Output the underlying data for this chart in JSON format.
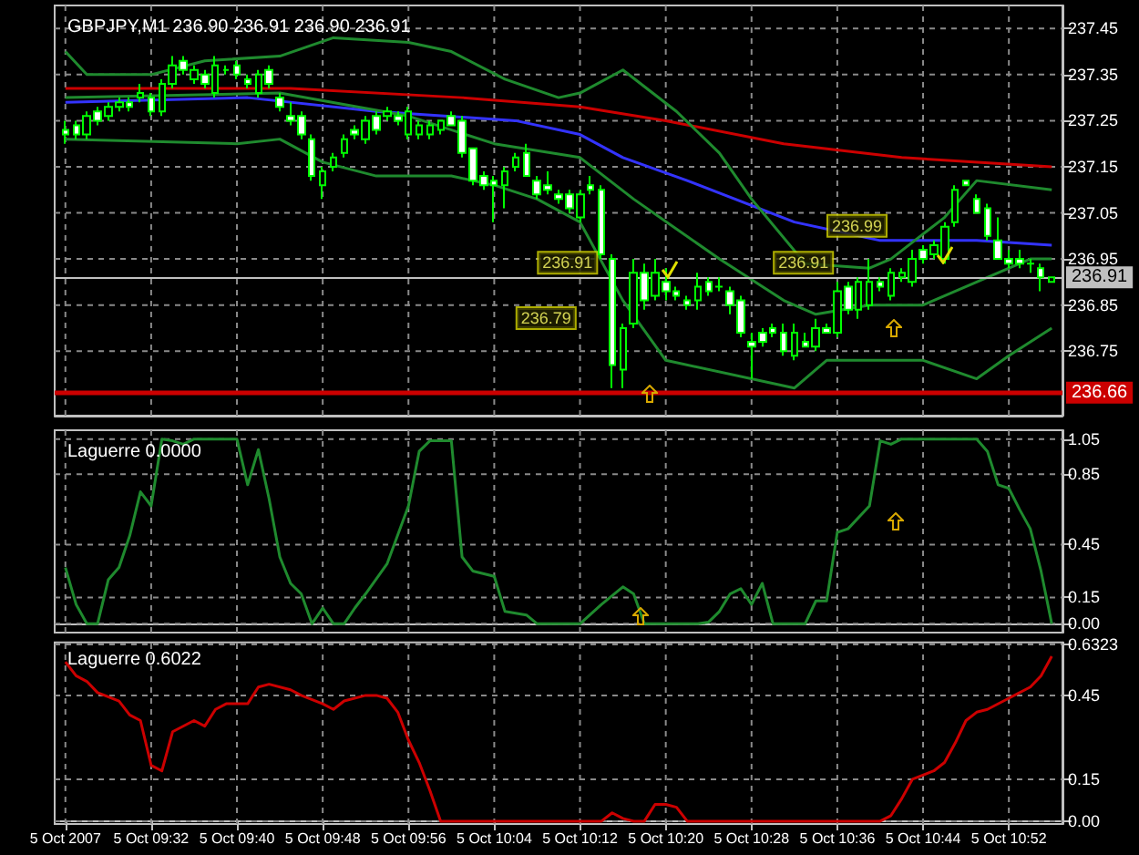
{
  "chart_data": [
    {
      "type": "candlestick",
      "title": "GBPJPY,M1 236.90 236.91 236.90 236.91",
      "xlim": [
        "2007-10-05T09:23",
        "2007-10-05T10:57"
      ],
      "xticks": [
        "2007-10-05T09:24",
        "2007-10-05T09:32",
        "2007-10-05T09:40",
        "2007-10-05T09:48",
        "2007-10-05T09:56",
        "2007-10-05T10:04",
        "2007-10-05T10:12",
        "2007-10-05T10:20",
        "2007-10-05T10:28",
        "2007-10-05T10:36",
        "2007-10-05T10:44",
        "2007-10-05T10:52"
      ],
      "ylim": [
        236.61,
        237.5
      ],
      "yticks": [
        236.75,
        236.85,
        236.95,
        237.05,
        237.15,
        237.25,
        237.35,
        237.45
      ],
      "tick_labels": "y",
      "grid": true,
      "marker": "none",
      "series": [
        {
          "type": "line",
          "color": "#cc0000",
          "x": [
            "2007-10-05T09:24",
            "2007-10-05T09:45",
            "2007-10-05T10:01",
            "2007-10-05T10:12",
            "2007-10-05T10:20",
            "2007-10-05T10:31",
            "2007-10-05T10:42",
            "2007-10-05T10:56"
          ],
          "values": [
            237.32,
            237.32,
            237.3,
            237.28,
            237.25,
            237.2,
            237.17,
            237.15
          ]
        },
        {
          "type": "line",
          "color": "#3333ff",
          "x": [
            "2007-10-05T09:24",
            "2007-10-05T09:41",
            "2007-10-05T09:53",
            "2007-10-05T10:06",
            "2007-10-05T10:12",
            "2007-10-05T10:16",
            "2007-10-05T10:22",
            "2007-10-05T10:32",
            "2007-10-05T10:40",
            "2007-10-05T10:49",
            "2007-10-05T10:56"
          ],
          "values": [
            237.29,
            237.3,
            237.27,
            237.25,
            237.22,
            237.17,
            237.12,
            237.03,
            236.99,
            236.99,
            236.98
          ]
        },
        {
          "type": "line",
          "color": "#1f8a2e",
          "x": [
            "2007-10-05T09:24",
            "2007-10-05T09:26",
            "2007-10-05T09:32",
            "2007-10-05T09:37",
            "2007-10-05T09:44",
            "2007-10-05T09:49",
            "2007-10-05T09:56",
            "2007-10-05T10:00",
            "2007-10-05T10:05",
            "2007-10-05T10:10",
            "2007-10-05T10:12",
            "2007-10-05T10:16",
            "2007-10-05T10:21",
            "2007-10-05T10:25",
            "2007-10-05T10:28",
            "2007-10-05T10:33",
            "2007-10-05T10:39",
            "2007-10-05T10:41",
            "2007-10-05T10:46",
            "2007-10-05T10:49",
            "2007-10-05T10:56"
          ],
          "values": [
            237.4,
            237.35,
            237.35,
            237.38,
            237.39,
            237.43,
            237.42,
            237.4,
            237.34,
            237.3,
            237.31,
            237.36,
            237.27,
            237.18,
            237.08,
            236.94,
            236.93,
            236.95,
            237.04,
            237.12,
            237.1
          ]
        },
        {
          "type": "line",
          "color": "#1f8a2e",
          "x": [
            "2007-10-05T09:24",
            "2007-10-05T09:44",
            "2007-10-05T09:56",
            "2007-10-05T10:04",
            "2007-10-05T10:12",
            "2007-10-05T10:17",
            "2007-10-05T10:25",
            "2007-10-05T10:31",
            "2007-10-05T10:34",
            "2007-10-05T10:39",
            "2007-10-05T10:44",
            "2007-10-05T10:49",
            "2007-10-05T10:54",
            "2007-10-05T10:56"
          ],
          "values": [
            237.3,
            237.31,
            237.26,
            237.2,
            237.17,
            237.08,
            236.95,
            236.86,
            236.83,
            236.85,
            236.85,
            236.9,
            236.95,
            236.95
          ]
        },
        {
          "type": "line",
          "color": "#1f8a2e",
          "x": [
            "2007-10-05T09:24",
            "2007-10-05T09:40",
            "2007-10-05T09:44",
            "2007-10-05T09:48",
            "2007-10-05T09:53",
            "2007-10-05T10:00",
            "2007-10-05T10:04",
            "2007-10-05T10:08",
            "2007-10-05T10:12",
            "2007-10-05T10:16",
            "2007-10-05T10:20",
            "2007-10-05T10:32",
            "2007-10-05T10:35",
            "2007-10-05T10:40",
            "2007-10-05T10:44",
            "2007-10-05T10:49",
            "2007-10-05T10:52",
            "2007-10-05T10:56"
          ],
          "values": [
            237.21,
            237.2,
            237.21,
            237.16,
            237.13,
            237.13,
            237.11,
            237.08,
            237.03,
            236.86,
            236.73,
            236.67,
            236.73,
            236.73,
            236.73,
            236.69,
            236.74,
            236.8
          ]
        },
        {
          "color": "#00ff00",
          "x": [
            "2007-10-05T09:24",
            "2007-10-05T09:25",
            "2007-10-05T09:26",
            "2007-10-05T09:27",
            "2007-10-05T09:28",
            "2007-10-05T09:29",
            "2007-10-05T09:30",
            "2007-10-05T09:31",
            "2007-10-05T09:32",
            "2007-10-05T09:33",
            "2007-10-05T09:34",
            "2007-10-05T09:35",
            "2007-10-05T09:36",
            "2007-10-05T09:37",
            "2007-10-05T09:38",
            "2007-10-05T09:39",
            "2007-10-05T09:40",
            "2007-10-05T09:41",
            "2007-10-05T09:42",
            "2007-10-05T09:43",
            "2007-10-05T09:44",
            "2007-10-05T09:45",
            "2007-10-05T09:46",
            "2007-10-05T09:47",
            "2007-10-05T09:48",
            "2007-10-05T09:49",
            "2007-10-05T09:50",
            "2007-10-05T09:51",
            "2007-10-05T09:52",
            "2007-10-05T09:53",
            "2007-10-05T09:54",
            "2007-10-05T09:55",
            "2007-10-05T09:56",
            "2007-10-05T09:57",
            "2007-10-05T09:58",
            "2007-10-05T09:59",
            "2007-10-05T10:00",
            "2007-10-05T10:01",
            "2007-10-05T10:02",
            "2007-10-05T10:03",
            "2007-10-05T10:04",
            "2007-10-05T10:05",
            "2007-10-05T10:06",
            "2007-10-05T10:07",
            "2007-10-05T10:08",
            "2007-10-05T10:09",
            "2007-10-05T10:10",
            "2007-10-05T10:11",
            "2007-10-05T10:12",
            "2007-10-05T10:13",
            "2007-10-05T10:14",
            "2007-10-05T10:15",
            "2007-10-05T10:16",
            "2007-10-05T10:17",
            "2007-10-05T10:18",
            "2007-10-05T10:19",
            "2007-10-05T10:20",
            "2007-10-05T10:21",
            "2007-10-05T10:22",
            "2007-10-05T10:23",
            "2007-10-05T10:24",
            "2007-10-05T10:25",
            "2007-10-05T10:26",
            "2007-10-05T10:27",
            "2007-10-05T10:28",
            "2007-10-05T10:29",
            "2007-10-05T10:30",
            "2007-10-05T10:31",
            "2007-10-05T10:32",
            "2007-10-05T10:33",
            "2007-10-05T10:34",
            "2007-10-05T10:35",
            "2007-10-05T10:36",
            "2007-10-05T10:37",
            "2007-10-05T10:38",
            "2007-10-05T10:39",
            "2007-10-05T10:40",
            "2007-10-05T10:41",
            "2007-10-05T10:42",
            "2007-10-05T10:43",
            "2007-10-05T10:44",
            "2007-10-05T10:45",
            "2007-10-05T10:46",
            "2007-10-05T10:47",
            "2007-10-05T10:48",
            "2007-10-05T10:49",
            "2007-10-05T10:50",
            "2007-10-05T10:51",
            "2007-10-05T10:52",
            "2007-10-05T10:53",
            "2007-10-05T10:54",
            "2007-10-05T10:55",
            "2007-10-05T10:56"
          ],
          "ohlc": [
            [
              237.23,
              237.25,
              237.2,
              237.22
            ],
            [
              237.24,
              237.25,
              237.21,
              237.22
            ],
            [
              237.22,
              237.27,
              237.21,
              237.26
            ],
            [
              237.27,
              237.28,
              237.24,
              237.25
            ],
            [
              237.26,
              237.29,
              237.25,
              237.28
            ],
            [
              237.28,
              237.3,
              237.27,
              237.29
            ],
            [
              237.29,
              237.3,
              237.27,
              237.28
            ],
            [
              237.3,
              237.33,
              237.29,
              237.31
            ],
            [
              237.3,
              237.31,
              237.26,
              237.27
            ],
            [
              237.27,
              237.34,
              237.26,
              237.33
            ],
            [
              237.33,
              237.39,
              237.32,
              237.37
            ],
            [
              237.38,
              237.39,
              237.35,
              237.36
            ],
            [
              237.34,
              237.37,
              237.33,
              237.36
            ],
            [
              237.35,
              237.36,
              237.32,
              237.33
            ],
            [
              237.31,
              237.39,
              237.3,
              237.37
            ],
            [
              237.36,
              237.37,
              237.35,
              237.36
            ],
            [
              237.37,
              237.38,
              237.34,
              237.35
            ],
            [
              237.34,
              237.35,
              237.32,
              237.33
            ],
            [
              237.31,
              237.36,
              237.3,
              237.35
            ],
            [
              237.36,
              237.37,
              237.32,
              237.33
            ],
            [
              237.3,
              237.31,
              237.27,
              237.28
            ],
            [
              237.26,
              237.29,
              237.24,
              237.25
            ],
            [
              237.26,
              237.27,
              237.21,
              237.22
            ],
            [
              237.21,
              237.22,
              237.12,
              237.13
            ],
            [
              237.11,
              237.15,
              237.08,
              237.14
            ],
            [
              237.15,
              237.18,
              237.14,
              237.17
            ],
            [
              237.18,
              237.22,
              237.17,
              237.21
            ],
            [
              237.23,
              237.24,
              237.21,
              237.22
            ],
            [
              237.21,
              237.26,
              237.2,
              237.25
            ],
            [
              237.26,
              237.27,
              237.22,
              237.23
            ],
            [
              237.26,
              237.28,
              237.25,
              237.27
            ],
            [
              237.26,
              237.27,
              237.24,
              237.25
            ],
            [
              237.22,
              237.28,
              237.21,
              237.27
            ],
            [
              237.22,
              237.25,
              237.21,
              237.24
            ],
            [
              237.22,
              237.25,
              237.21,
              237.24
            ],
            [
              237.23,
              237.25,
              237.22,
              237.25
            ],
            [
              237.26,
              237.27,
              237.24,
              237.24
            ],
            [
              237.25,
              237.26,
              237.17,
              237.18
            ],
            [
              237.19,
              237.19,
              237.11,
              237.12
            ],
            [
              237.13,
              237.14,
              237.1,
              237.11
            ],
            [
              237.12,
              237.13,
              237.03,
              237.11
            ],
            [
              237.11,
              237.15,
              237.06,
              237.14
            ],
            [
              237.15,
              237.18,
              237.14,
              237.17
            ],
            [
              237.18,
              237.2,
              237.13,
              237.13
            ],
            [
              237.12,
              237.13,
              237.08,
              237.09
            ],
            [
              237.11,
              237.14,
              237.09,
              237.1
            ],
            [
              237.09,
              237.1,
              237.07,
              237.08
            ],
            [
              237.09,
              237.1,
              237.05,
              237.06
            ],
            [
              237.04,
              237.1,
              237.03,
              237.09
            ],
            [
              237.11,
              237.13,
              237.09,
              237.1
            ],
            [
              237.1,
              237.11,
              236.95,
              236.96
            ],
            [
              236.95,
              236.96,
              236.67,
              236.72
            ],
            [
              236.71,
              236.81,
              236.67,
              236.8
            ],
            [
              236.81,
              236.95,
              236.8,
              236.92
            ],
            [
              236.92,
              236.94,
              236.84,
              236.86
            ],
            [
              236.87,
              236.95,
              236.86,
              236.92
            ],
            [
              236.9,
              236.93,
              236.86,
              236.88
            ],
            [
              236.88,
              236.89,
              236.86,
              236.87
            ],
            [
              236.86,
              236.87,
              236.84,
              236.85
            ],
            [
              236.86,
              236.92,
              236.84,
              236.89
            ],
            [
              236.9,
              236.91,
              236.87,
              236.88
            ],
            [
              236.89,
              236.91,
              236.88,
              236.89
            ],
            [
              236.88,
              236.89,
              236.83,
              236.85
            ],
            [
              236.86,
              236.87,
              236.78,
              236.79
            ],
            [
              236.77,
              236.79,
              236.69,
              236.76
            ],
            [
              236.79,
              236.8,
              236.76,
              236.77
            ],
            [
              236.8,
              236.81,
              236.78,
              236.79
            ],
            [
              236.79,
              236.81,
              236.74,
              236.75
            ],
            [
              236.74,
              236.81,
              236.73,
              236.79
            ],
            [
              236.77,
              236.79,
              236.76,
              236.76
            ],
            [
              236.76,
              236.82,
              236.75,
              236.8
            ],
            [
              236.8,
              236.81,
              236.79,
              236.79
            ],
            [
              236.79,
              236.9,
              236.78,
              236.88
            ],
            [
              236.89,
              236.9,
              236.83,
              236.84
            ],
            [
              236.84,
              236.91,
              236.82,
              236.9
            ],
            [
              236.85,
              236.95,
              236.84,
              236.9
            ],
            [
              236.9,
              236.91,
              236.88,
              236.89
            ],
            [
              236.87,
              236.93,
              236.86,
              236.92
            ],
            [
              236.91,
              236.93,
              236.9,
              236.92
            ],
            [
              236.9,
              236.97,
              236.89,
              236.95
            ],
            [
              236.97,
              236.98,
              236.94,
              236.95
            ],
            [
              236.96,
              236.99,
              236.95,
              236.98
            ],
            [
              236.95,
              237.03,
              236.94,
              237.02
            ],
            [
              237.03,
              237.11,
              237.02,
              237.1
            ],
            [
              237.12,
              237.12,
              237.11,
              237.11
            ],
            [
              237.08,
              237.09,
              237.05,
              237.05
            ],
            [
              237.06,
              237.07,
              236.99,
              237.0
            ],
            [
              236.99,
              237.04,
              236.95,
              236.95
            ],
            [
              236.95,
              236.97,
              236.93,
              236.94
            ],
            [
              236.95,
              236.97,
              236.93,
              236.94
            ],
            [
              236.94,
              236.95,
              236.92,
              236.94
            ],
            [
              236.93,
              236.94,
              236.88,
              236.91
            ],
            [
              236.9,
              236.91,
              236.9,
              236.91
            ]
          ]
        }
      ],
      "ref_lines": [
        {
          "axis": "y",
          "value": 236.91,
          "label": "236.91",
          "color": "#c0c0c0"
        },
        {
          "axis": "y",
          "value": 236.66,
          "label": "236.66",
          "color": "#cc0000"
        }
      ],
      "annotations": [
        {
          "text": "236.79",
          "x": "2007-10-05T10:15",
          "y": 236.79
        },
        {
          "text": "236.91",
          "x": "2007-10-05T10:17",
          "y": 236.91
        },
        {
          "text": "236.91",
          "x": "2007-10-05T10:39",
          "y": 236.91
        },
        {
          "text": "236.99",
          "x": "2007-10-05T10:44",
          "y": 236.99
        }
      ]
    },
    {
      "type": "line",
      "title": "Laguerre 0.0000",
      "xlim": [
        "2007-10-05T09:23",
        "2007-10-05T10:57"
      ],
      "xticks": [
        "2007-10-05T09:24",
        "2007-10-05T09:32",
        "2007-10-05T09:40",
        "2007-10-05T09:48",
        "2007-10-05T09:56",
        "2007-10-05T10:04",
        "2007-10-05T10:12",
        "2007-10-05T10:20",
        "2007-10-05T10:28",
        "2007-10-05T10:36",
        "2007-10-05T10:44",
        "2007-10-05T10:52"
      ],
      "ylim": [
        -0.05,
        1.1
      ],
      "yticks": [
        {
          "value": 0,
          "label": "0.00"
        },
        0.15,
        0.45,
        0.85,
        1.05
      ],
      "tick_labels": "y",
      "grid": true,
      "marker": "none",
      "series": [
        {
          "color": "#1f8a2e",
          "x": [
            "2007-10-05T09:24",
            "2007-10-05T09:25",
            "2007-10-05T09:26",
            "2007-10-05T09:27",
            "2007-10-05T09:28",
            "2007-10-05T09:29",
            "2007-10-05T09:30",
            "2007-10-05T09:31",
            "2007-10-05T09:32",
            "2007-10-05T09:33",
            "2007-10-05T09:34",
            "2007-10-05T09:35",
            "2007-10-05T09:36",
            "2007-10-05T09:40",
            "2007-10-05T09:41",
            "2007-10-05T09:42",
            "2007-10-05T09:43",
            "2007-10-05T09:44",
            "2007-10-05T09:45",
            "2007-10-05T09:46",
            "2007-10-05T09:47",
            "2007-10-05T09:48",
            "2007-10-05T09:49",
            "2007-10-05T09:50",
            "2007-10-05T09:51",
            "2007-10-05T09:52",
            "2007-10-05T09:54",
            "2007-10-05T09:56",
            "2007-10-05T09:57",
            "2007-10-05T09:58",
            "2007-10-05T10:00",
            "2007-10-05T10:01",
            "2007-10-05T10:02",
            "2007-10-05T10:04",
            "2007-10-05T10:05",
            "2007-10-05T10:07",
            "2007-10-05T10:08",
            "2007-10-05T10:12",
            "2007-10-05T10:14",
            "2007-10-05T10:16",
            "2007-10-05T10:17",
            "2007-10-05T10:18",
            "2007-10-05T10:23",
            "2007-10-05T10:24",
            "2007-10-05T10:25",
            "2007-10-05T10:26",
            "2007-10-05T10:27",
            "2007-10-05T10:28",
            "2007-10-05T10:29",
            "2007-10-05T10:30",
            "2007-10-05T10:33",
            "2007-10-05T10:34",
            "2007-10-05T10:35",
            "2007-10-05T10:36",
            "2007-10-05T10:37",
            "2007-10-05T10:39",
            "2007-10-05T10:40",
            "2007-10-05T10:41",
            "2007-10-05T10:42",
            "2007-10-05T10:49",
            "2007-10-05T10:50",
            "2007-10-05T10:51",
            "2007-10-05T10:52",
            "2007-10-05T10:53",
            "2007-10-05T10:54",
            "2007-10-05T10:55",
            "2007-10-05T10:56"
          ],
          "values": [
            0.32,
            0.11,
            0,
            0,
            0.25,
            0.32,
            0.5,
            0.75,
            0.67,
            1.05,
            1.04,
            1.02,
            1.05,
            1.05,
            0.79,
            0.99,
            0.71,
            0.38,
            0.23,
            0.17,
            0,
            0.09,
            0,
            0,
            0.09,
            0.17,
            0.34,
            0.67,
            0.98,
            1.04,
            1.04,
            0.38,
            0.3,
            0.27,
            0.07,
            0.05,
            0,
            0,
            0.11,
            0.21,
            0.17,
            0,
            0,
            0.01,
            0.07,
            0.17,
            0.2,
            0.11,
            0.23,
            0,
            0,
            0.13,
            0.13,
            0.52,
            0.54,
            0.67,
            1.04,
            1.02,
            1.05,
            1.05,
            0.98,
            0.79,
            0.77,
            0.65,
            0.54,
            0.3,
            0
          ]
        }
      ]
    },
    {
      "type": "line",
      "title": "Laguerre 0.6022",
      "xlim": [
        "2007-10-05T09:23",
        "2007-10-05T10:57"
      ],
      "xticks": [
        {
          "value": "2007-10-05T09:24",
          "label": "5 Oct 2007"
        },
        {
          "value": "2007-10-05T09:32",
          "label": "5 Oct 09:32"
        },
        {
          "value": "2007-10-05T09:40",
          "label": "5 Oct 09:40"
        },
        {
          "value": "2007-10-05T09:48",
          "label": "5 Oct 09:48"
        },
        {
          "value": "2007-10-05T09:56",
          "label": "5 Oct 09:56"
        },
        {
          "value": "2007-10-05T10:04",
          "label": "5 Oct 10:04"
        },
        {
          "value": "2007-10-05T10:12",
          "label": "5 Oct 10:12"
        },
        {
          "value": "2007-10-05T10:20",
          "label": "5 Oct 10:20"
        },
        {
          "value": "2007-10-05T10:28",
          "label": "5 Oct 10:28"
        },
        {
          "value": "2007-10-05T10:36",
          "label": "5 Oct 10:36"
        },
        {
          "value": "2007-10-05T10:44",
          "label": "5 Oct 10:44"
        },
        {
          "value": "2007-10-05T10:52",
          "label": "5 Oct 10:52"
        }
      ],
      "ylim": [
        -0.01,
        0.64
      ],
      "yticks": [
        {
          "value": 0,
          "label": "0.00"
        },
        0.15,
        0.45,
        0.6323
      ],
      "grid": true,
      "marker": "none",
      "series": [
        {
          "color": "#cc0000",
          "x": [
            "2007-10-05T09:24",
            "2007-10-05T09:25",
            "2007-10-05T09:26",
            "2007-10-05T09:27",
            "2007-10-05T09:29",
            "2007-10-05T09:30",
            "2007-10-05T09:31",
            "2007-10-05T09:32",
            "2007-10-05T09:33",
            "2007-10-05T09:34",
            "2007-10-05T09:36",
            "2007-10-05T09:37",
            "2007-10-05T09:38",
            "2007-10-05T09:39",
            "2007-10-05T09:41",
            "2007-10-05T09:42",
            "2007-10-05T09:43",
            "2007-10-05T09:45",
            "2007-10-05T09:46",
            "2007-10-05T09:48",
            "2007-10-05T09:49",
            "2007-10-05T09:50",
            "2007-10-05T09:52",
            "2007-10-05T09:53",
            "2007-10-05T09:54",
            "2007-10-05T09:55",
            "2007-10-05T09:56",
            "2007-10-05T09:57",
            "2007-10-05T09:58",
            "2007-10-05T09:59",
            "2007-10-05T10:14",
            "2007-10-05T10:15",
            "2007-10-05T10:16",
            "2007-10-05T10:17",
            "2007-10-05T10:18",
            "2007-10-05T10:19",
            "2007-10-05T10:20",
            "2007-10-05T10:21",
            "2007-10-05T10:22",
            "2007-10-05T10:40",
            "2007-10-05T10:41",
            "2007-10-05T10:42",
            "2007-10-05T10:43",
            "2007-10-05T10:45",
            "2007-10-05T10:46",
            "2007-10-05T10:47",
            "2007-10-05T10:48",
            "2007-10-05T10:49",
            "2007-10-05T10:50",
            "2007-10-05T10:52",
            "2007-10-05T10:54",
            "2007-10-05T10:55",
            "2007-10-05T10:56"
          ],
          "values": [
            0.57,
            0.52,
            0.5,
            0.46,
            0.43,
            0.38,
            0.36,
            0.2,
            0.18,
            0.32,
            0.36,
            0.34,
            0.4,
            0.42,
            0.42,
            0.48,
            0.49,
            0.47,
            0.45,
            0.42,
            0.4,
            0.43,
            0.45,
            0.45,
            0.44,
            0.39,
            0.29,
            0.21,
            0.11,
            0,
            0,
            0.03,
            0.01,
            0,
            0,
            0.06,
            0.06,
            0.05,
            0,
            0,
            0.02,
            0.08,
            0.15,
            0.18,
            0.21,
            0.28,
            0.36,
            0.39,
            0.4,
            0.44,
            0.48,
            0.52,
            0.59
          ]
        }
      ]
    }
  ]
}
